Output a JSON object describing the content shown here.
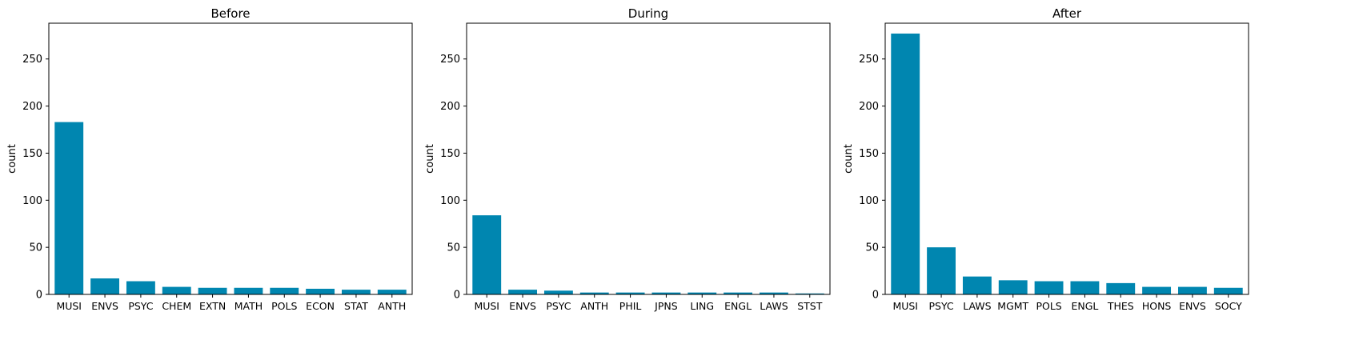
{
  "chart_data": [
    {
      "type": "bar",
      "title": "Before",
      "xlabel": "",
      "ylabel": "count",
      "ylim": [
        0,
        288
      ],
      "yticks": [
        0,
        50,
        100,
        150,
        200,
        250
      ],
      "grid": false,
      "bar_color": "#0086b0",
      "categories": [
        "MUSI",
        "ENVS",
        "PSYC",
        "CHEM",
        "EXTN",
        "MATH",
        "POLS",
        "ECON",
        "STAT",
        "ANTH"
      ],
      "values": [
        183,
        17,
        14,
        8,
        7,
        7,
        7,
        6,
        5,
        5
      ]
    },
    {
      "type": "bar",
      "title": "During",
      "xlabel": "",
      "ylabel": "count",
      "ylim": [
        0,
        288
      ],
      "yticks": [
        0,
        50,
        100,
        150,
        200,
        250
      ],
      "grid": false,
      "bar_color": "#0086b0",
      "categories": [
        "MUSI",
        "ENVS",
        "PSYC",
        "ANTH",
        "PHIL",
        "JPNS",
        "LING",
        "ENGL",
        "LAWS",
        "STST"
      ],
      "values": [
        84,
        5,
        4,
        2,
        2,
        2,
        2,
        2,
        2,
        1
      ]
    },
    {
      "type": "bar",
      "title": "After",
      "xlabel": "",
      "ylabel": "count",
      "ylim": [
        0,
        288
      ],
      "yticks": [
        0,
        50,
        100,
        150,
        200,
        250
      ],
      "grid": false,
      "bar_color": "#0086b0",
      "categories": [
        "MUSI",
        "PSYC",
        "LAWS",
        "MGMT",
        "POLS",
        "ENGL",
        "THES",
        "HONS",
        "ENVS",
        "SOCY"
      ],
      "values": [
        277,
        50,
        19,
        15,
        14,
        14,
        12,
        8,
        8,
        7
      ]
    }
  ]
}
